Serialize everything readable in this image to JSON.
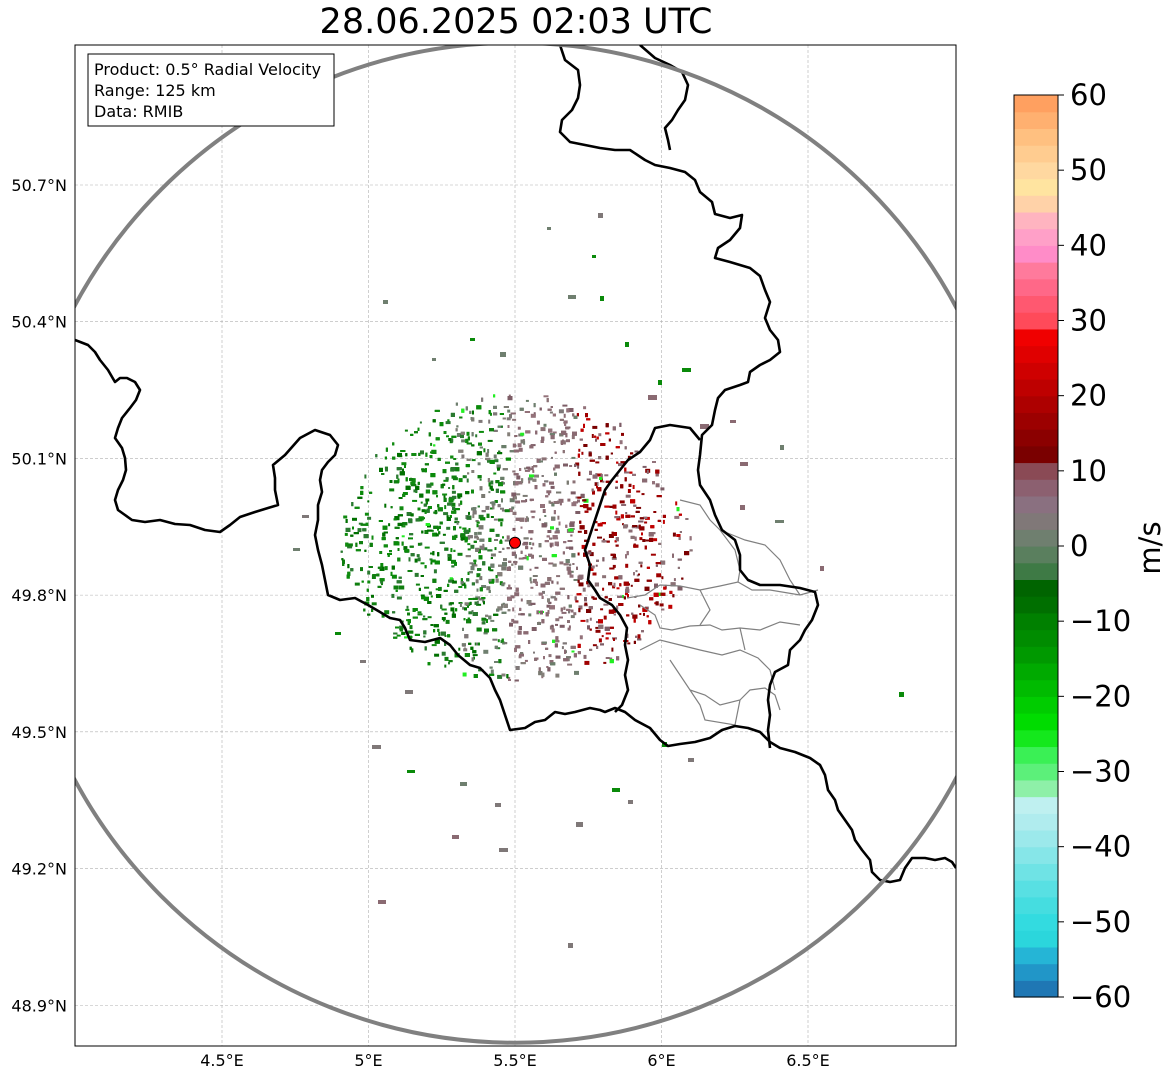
{
  "title": "28.06.2025 02:03 UTC",
  "info": {
    "product": "Product: 0.5° Radial Velocity",
    "range": "Range: 125 km",
    "data": "Data: RMIB"
  },
  "axes": {
    "lon_ticks": [
      {
        "value": 4.5,
        "label": "4.5°E"
      },
      {
        "value": 5.0,
        "label": "5°E"
      },
      {
        "value": 5.5,
        "label": "5.5°E"
      },
      {
        "value": 6.0,
        "label": "6°E"
      },
      {
        "value": 6.5,
        "label": "6.5°E"
      }
    ],
    "lat_ticks": [
      {
        "value": 50.7,
        "label": "50.7°N"
      },
      {
        "value": 50.4,
        "label": "50.4°N"
      },
      {
        "value": 50.1,
        "label": "50.1°N"
      },
      {
        "value": 49.8,
        "label": "49.8°N"
      },
      {
        "value": 49.5,
        "label": "49.5°N"
      },
      {
        "value": 49.2,
        "label": "49.2°N"
      },
      {
        "value": 48.9,
        "label": "48.9°N"
      }
    ],
    "lon_range": [
      4.0,
      7.0
    ],
    "lat_range": [
      48.8,
      51.0
    ]
  },
  "radar": {
    "lon": 5.5,
    "lat": 49.915,
    "range_km": 125,
    "marker_color": "#ff0000"
  },
  "colorbar": {
    "label": "m/s",
    "min": -60,
    "max": 60,
    "ticks": [
      60,
      50,
      40,
      30,
      20,
      10,
      0,
      -10,
      -20,
      -30,
      -40,
      -50,
      -60
    ],
    "tick_labels": [
      "60",
      "50",
      "40",
      "30",
      "20",
      "10",
      "0",
      "−10",
      "−20",
      "−30",
      "−40",
      "−50",
      "−60"
    ],
    "colors": [
      "#1f77b4",
      "#2196c8",
      "#25b5d6",
      "#2bd6dc",
      "#33dbe0",
      "#45dde0",
      "#58e0e3",
      "#6fe3e5",
      "#86e6e8",
      "#9ce9eb",
      "#b0ecee",
      "#bff0f0",
      "#8ef0a8",
      "#5cf07a",
      "#3af055",
      "#14e81c",
      "#00dc00",
      "#00cc00",
      "#00bb00",
      "#00aa00",
      "#009900",
      "#008c00",
      "#008000",
      "#006f00",
      "#006400",
      "#3e7a45",
      "#5a7f5e",
      "#6f7f6f",
      "#807878",
      "#8a7080",
      "#8c6070",
      "#8a4a55",
      "#7a0000",
      "#8b0000",
      "#9c0000",
      "#ad0000",
      "#be0000",
      "#cf0000",
      "#e00000",
      "#f00000",
      "#ff4a5a",
      "#ff5870",
      "#ff6888",
      "#ff7a9c",
      "#ff8cc8",
      "#ffa0c8",
      "#ffb4c0",
      "#ffd2a8",
      "#ffe4a0",
      "#ffd8a0",
      "#ffcc90",
      "#ffc080",
      "#ffb070",
      "#ffa060"
    ]
  },
  "velocity_field": {
    "center_lon": 5.5,
    "center_lat": 49.915,
    "approach_color_dark": "#007000",
    "approach_color": "#0a8a0a",
    "near_zero_color": "#6f7f6f",
    "receding_color": "#8a6a72",
    "receding_strong": "#8b0000",
    "bright_green": "#22ee22"
  },
  "borders": {
    "country_color": "#000000",
    "province_color": "#808080",
    "range_ring_color": "#808080"
  }
}
